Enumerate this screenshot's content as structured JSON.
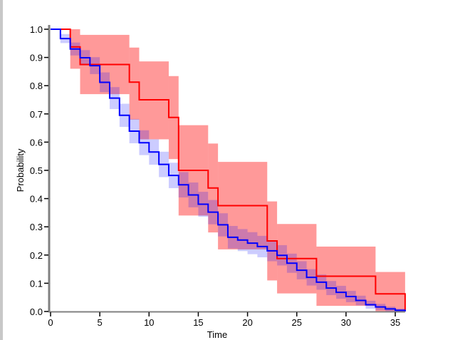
{
  "chart_data": {
    "type": "line",
    "step": true,
    "title": "",
    "xlabel": "Time",
    "ylabel": "Probability",
    "xlim": [
      0,
      36
    ],
    "ylim": [
      0,
      1
    ],
    "xticks": [
      "0",
      "5",
      "10",
      "15",
      "20",
      "25",
      "30",
      "35"
    ],
    "yticks": [
      "0.0",
      "0.1",
      "0.2",
      "0.3",
      "0.4",
      "0.5",
      "0.6",
      "0.7",
      "0.8",
      "0.9",
      "1.0"
    ],
    "grid": false,
    "series": [
      {
        "color": "#ff0000",
        "band_color": "rgba(255,0,0,0.4)",
        "steps": [
          {
            "t": 0,
            "s": 1.0
          },
          {
            "t": 2,
            "s": 0.9375,
            "lower": 0.86,
            "upper": 1.0
          },
          {
            "t": 3,
            "s": 0.875,
            "lower": 0.77,
            "upper": 0.98
          },
          {
            "t": 8,
            "s": 0.8125,
            "lower": 0.68,
            "upper": 0.935
          },
          {
            "t": 9,
            "s": 0.75,
            "lower": 0.61,
            "upper": 0.886
          },
          {
            "t": 12,
            "s": 0.6875,
            "lower": 0.54,
            "upper": 0.834
          },
          {
            "t": 13,
            "s": 0.5,
            "lower": 0.34,
            "upper": 0.66
          },
          {
            "t": 16,
            "s": 0.4375,
            "lower": 0.28,
            "upper": 0.595
          },
          {
            "t": 17,
            "s": 0.375,
            "lower": 0.22,
            "upper": 0.53
          },
          {
            "t": 22,
            "s": 0.25,
            "lower": 0.11,
            "upper": 0.39
          },
          {
            "t": 23,
            "s": 0.1875,
            "lower": 0.064,
            "upper": 0.31
          },
          {
            "t": 27,
            "s": 0.125,
            "lower": 0.02,
            "upper": 0.23
          },
          {
            "t": 33,
            "s": 0.0625,
            "lower": 0.0,
            "upper": 0.14
          },
          {
            "t": 36,
            "s": 0.0
          }
        ]
      },
      {
        "color": "#0000ff",
        "band_color": "rgba(0,0,255,0.2)",
        "steps": [
          {
            "t": 0,
            "s": 1.0
          },
          {
            "t": 1,
            "s": 0.967,
            "lower": 0.951,
            "upper": 0.983
          },
          {
            "t": 2,
            "s": 0.93,
            "lower": 0.907,
            "upper": 0.953
          },
          {
            "t": 3,
            "s": 0.899,
            "lower": 0.872,
            "upper": 0.926
          },
          {
            "t": 4,
            "s": 0.871,
            "lower": 0.841,
            "upper": 0.901
          },
          {
            "t": 5,
            "s": 0.812,
            "lower": 0.777,
            "upper": 0.847
          },
          {
            "t": 6,
            "s": 0.756,
            "lower": 0.717,
            "upper": 0.795
          },
          {
            "t": 7,
            "s": 0.695,
            "lower": 0.654,
            "upper": 0.736
          },
          {
            "t": 8,
            "s": 0.639,
            "lower": 0.596,
            "upper": 0.682
          },
          {
            "t": 9,
            "s": 0.598,
            "lower": 0.554,
            "upper": 0.642
          },
          {
            "t": 10,
            "s": 0.565,
            "lower": 0.52,
            "upper": 0.61
          },
          {
            "t": 11,
            "s": 0.521,
            "lower": 0.476,
            "upper": 0.566
          },
          {
            "t": 12,
            "s": 0.482,
            "lower": 0.437,
            "upper": 0.527
          },
          {
            "t": 13,
            "s": 0.449,
            "lower": 0.404,
            "upper": 0.494
          },
          {
            "t": 14,
            "s": 0.413,
            "lower": 0.369,
            "upper": 0.457
          },
          {
            "t": 15,
            "s": 0.38,
            "lower": 0.336,
            "upper": 0.424
          },
          {
            "t": 16,
            "s": 0.352,
            "lower": 0.309,
            "upper": 0.395
          },
          {
            "t": 17,
            "s": 0.307,
            "lower": 0.266,
            "upper": 0.348
          },
          {
            "t": 18,
            "s": 0.263,
            "lower": 0.223,
            "upper": 0.303
          },
          {
            "t": 19,
            "s": 0.253,
            "lower": 0.214,
            "upper": 0.292
          },
          {
            "t": 20,
            "s": 0.242,
            "lower": 0.203,
            "upper": 0.281
          },
          {
            "t": 21,
            "s": 0.23,
            "lower": 0.192,
            "upper": 0.268
          },
          {
            "t": 22,
            "s": 0.215,
            "lower": 0.178,
            "upper": 0.252
          },
          {
            "t": 23,
            "s": 0.199,
            "lower": 0.163,
            "upper": 0.235
          },
          {
            "t": 24,
            "s": 0.171,
            "lower": 0.137,
            "upper": 0.205
          },
          {
            "t": 25,
            "s": 0.146,
            "lower": 0.114,
            "upper": 0.178
          },
          {
            "t": 26,
            "s": 0.121,
            "lower": 0.092,
            "upper": 0.15
          },
          {
            "t": 27,
            "s": 0.104,
            "lower": 0.077,
            "upper": 0.131
          },
          {
            "t": 28,
            "s": 0.083,
            "lower": 0.058,
            "upper": 0.108
          },
          {
            "t": 29,
            "s": 0.068,
            "lower": 0.045,
            "upper": 0.091
          },
          {
            "t": 30,
            "s": 0.053,
            "lower": 0.033,
            "upper": 0.073
          },
          {
            "t": 31,
            "s": 0.039,
            "lower": 0.022,
            "upper": 0.056
          },
          {
            "t": 32,
            "s": 0.024,
            "lower": 0.01,
            "upper": 0.038
          },
          {
            "t": 33,
            "s": 0.016,
            "lower": 0.005,
            "upper": 0.027
          },
          {
            "t": 34,
            "s": 0.009,
            "lower": 0.001,
            "upper": 0.017
          },
          {
            "t": 35,
            "s": 0.004,
            "lower": 0.0,
            "upper": 0.01
          },
          {
            "t": 36,
            "s": 0.0
          }
        ]
      }
    ]
  }
}
